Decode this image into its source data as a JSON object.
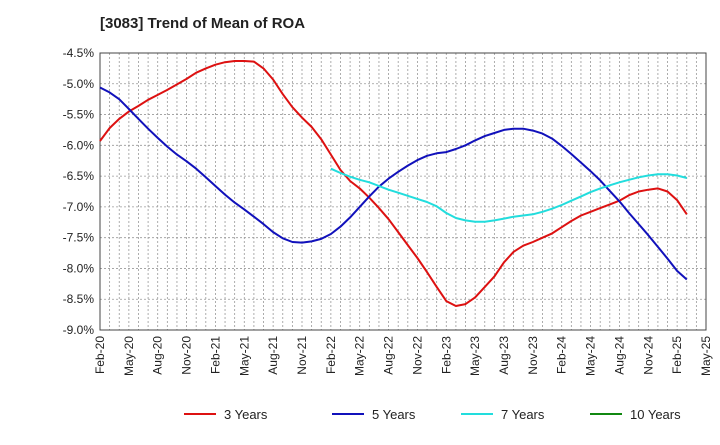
{
  "title": "[3083]  Trend of Mean of ROA",
  "chart_data": {
    "type": "line",
    "title": "[3083]  Trend of Mean of ROA",
    "xlabel": "",
    "ylabel": "",
    "ylim": [
      -9.0,
      -4.5
    ],
    "y_ticks": [
      -4.5,
      -5.0,
      -5.5,
      -6.0,
      -6.5,
      -7.0,
      -7.5,
      -8.0,
      -8.5,
      -9.0
    ],
    "y_tick_labels": [
      "-4.5%",
      "-5.0%",
      "-5.5%",
      "-6.0%",
      "-6.5%",
      "-7.0%",
      "-7.5%",
      "-8.0%",
      "-8.5%",
      "-9.0%"
    ],
    "x_tick_labels": [
      "Feb-20",
      "May-20",
      "Aug-20",
      "Nov-20",
      "Feb-21",
      "May-21",
      "Aug-21",
      "Nov-21",
      "Feb-22",
      "May-22",
      "Aug-22",
      "Nov-22",
      "Feb-23",
      "May-23",
      "Aug-23",
      "Nov-23",
      "Feb-24",
      "May-24",
      "Aug-24",
      "Nov-24",
      "Feb-25",
      "May-25"
    ],
    "grid": true,
    "legend_position": "bottom",
    "series": [
      {
        "name": "3 Years",
        "color": "#dd1111",
        "points": [
          [
            "Feb-20",
            -5.93
          ],
          [
            "Mar-20",
            -5.72
          ],
          [
            "Apr-20",
            -5.57
          ],
          [
            "May-20",
            -5.45
          ],
          [
            "Jun-20",
            -5.36
          ],
          [
            "Jul-20",
            -5.26
          ],
          [
            "Aug-20",
            -5.18
          ],
          [
            "Sep-20",
            -5.1
          ],
          [
            "Oct-20",
            -5.01
          ],
          [
            "Nov-20",
            -4.92
          ],
          [
            "Dec-20",
            -4.82
          ],
          [
            "Jan-21",
            -4.75
          ],
          [
            "Feb-21",
            -4.69
          ],
          [
            "Mar-21",
            -4.65
          ],
          [
            "Apr-21",
            -4.63
          ],
          [
            "May-21",
            -4.63
          ],
          [
            "Jun-21",
            -4.64
          ],
          [
            "Jul-21",
            -4.75
          ],
          [
            "Aug-21",
            -4.93
          ],
          [
            "Sep-21",
            -5.17
          ],
          [
            "Oct-21",
            -5.38
          ],
          [
            "Nov-21",
            -5.55
          ],
          [
            "Dec-21",
            -5.7
          ],
          [
            "Jan-22",
            -5.9
          ],
          [
            "Feb-22",
            -6.15
          ],
          [
            "Mar-22",
            -6.4
          ],
          [
            "Apr-22",
            -6.58
          ],
          [
            "May-22",
            -6.7
          ],
          [
            "Jun-22",
            -6.85
          ],
          [
            "Jul-22",
            -7.02
          ],
          [
            "Aug-22",
            -7.2
          ],
          [
            "Sep-22",
            -7.41
          ],
          [
            "Oct-22",
            -7.62
          ],
          [
            "Nov-22",
            -7.83
          ],
          [
            "Dec-22",
            -8.06
          ],
          [
            "Jan-23",
            -8.3
          ],
          [
            "Feb-23",
            -8.53
          ],
          [
            "Mar-23",
            -8.61
          ],
          [
            "Apr-23",
            -8.58
          ],
          [
            "May-23",
            -8.47
          ],
          [
            "Jun-23",
            -8.3
          ],
          [
            "Jul-23",
            -8.13
          ],
          [
            "Aug-23",
            -7.9
          ],
          [
            "Sep-23",
            -7.73
          ],
          [
            "Oct-23",
            -7.63
          ],
          [
            "Nov-23",
            -7.57
          ],
          [
            "Dec-23",
            -7.5
          ],
          [
            "Jan-24",
            -7.43
          ],
          [
            "Feb-24",
            -7.33
          ],
          [
            "Mar-24",
            -7.23
          ],
          [
            "Apr-24",
            -7.14
          ],
          [
            "May-24",
            -7.08
          ],
          [
            "Jun-24",
            -7.02
          ],
          [
            "Jul-24",
            -6.96
          ],
          [
            "Aug-24",
            -6.9
          ],
          [
            "Sep-24",
            -6.81
          ],
          [
            "Oct-24",
            -6.75
          ],
          [
            "Nov-24",
            -6.72
          ],
          [
            "Dec-24",
            -6.7
          ],
          [
            "Jan-25",
            -6.75
          ],
          [
            "Feb-25",
            -6.89
          ],
          [
            "Mar-25",
            -7.12
          ]
        ]
      },
      {
        "name": "5 Years",
        "color": "#1111bb",
        "points": [
          [
            "Feb-20",
            -5.06
          ],
          [
            "Mar-20",
            -5.14
          ],
          [
            "Apr-20",
            -5.25
          ],
          [
            "May-20",
            -5.41
          ],
          [
            "Jun-20",
            -5.57
          ],
          [
            "Jul-20",
            -5.73
          ],
          [
            "Aug-20",
            -5.88
          ],
          [
            "Sep-20",
            -6.02
          ],
          [
            "Oct-20",
            -6.15
          ],
          [
            "Nov-20",
            -6.26
          ],
          [
            "Dec-20",
            -6.38
          ],
          [
            "Jan-21",
            -6.52
          ],
          [
            "Feb-21",
            -6.66
          ],
          [
            "Mar-21",
            -6.8
          ],
          [
            "Apr-21",
            -6.93
          ],
          [
            "May-21",
            -7.04
          ],
          [
            "Jun-21",
            -7.16
          ],
          [
            "Jul-21",
            -7.28
          ],
          [
            "Aug-21",
            -7.41
          ],
          [
            "Sep-21",
            -7.51
          ],
          [
            "Oct-21",
            -7.57
          ],
          [
            "Nov-21",
            -7.58
          ],
          [
            "Dec-21",
            -7.56
          ],
          [
            "Jan-22",
            -7.52
          ],
          [
            "Feb-22",
            -7.44
          ],
          [
            "Mar-22",
            -7.32
          ],
          [
            "Apr-22",
            -7.17
          ],
          [
            "May-22",
            -7.0
          ],
          [
            "Jun-22",
            -6.83
          ],
          [
            "Jul-22",
            -6.67
          ],
          [
            "Aug-22",
            -6.54
          ],
          [
            "Sep-22",
            -6.43
          ],
          [
            "Oct-22",
            -6.33
          ],
          [
            "Nov-22",
            -6.24
          ],
          [
            "Dec-22",
            -6.17
          ],
          [
            "Jan-23",
            -6.13
          ],
          [
            "Feb-23",
            -6.11
          ],
          [
            "Mar-23",
            -6.06
          ],
          [
            "Apr-23",
            -6.0
          ],
          [
            "May-23",
            -5.92
          ],
          [
            "Jun-23",
            -5.85
          ],
          [
            "Jul-23",
            -5.8
          ],
          [
            "Aug-23",
            -5.75
          ],
          [
            "Sep-23",
            -5.73
          ],
          [
            "Oct-23",
            -5.73
          ],
          [
            "Nov-23",
            -5.76
          ],
          [
            "Dec-23",
            -5.81
          ],
          [
            "Jan-24",
            -5.89
          ],
          [
            "Feb-24",
            -6.01
          ],
          [
            "Mar-24",
            -6.14
          ],
          [
            "Apr-24",
            -6.28
          ],
          [
            "May-24",
            -6.42
          ],
          [
            "Jun-24",
            -6.57
          ],
          [
            "Jul-24",
            -6.74
          ],
          [
            "Aug-24",
            -6.91
          ],
          [
            "Sep-24",
            -7.1
          ],
          [
            "Oct-24",
            -7.28
          ],
          [
            "Nov-24",
            -7.46
          ],
          [
            "Dec-24",
            -7.65
          ],
          [
            "Jan-25",
            -7.84
          ],
          [
            "Feb-25",
            -8.04
          ],
          [
            "Mar-25",
            -8.18
          ]
        ]
      },
      {
        "name": "7 Years",
        "color": "#22dddd",
        "points": [
          [
            "Feb-22",
            -6.38
          ],
          [
            "Mar-22",
            -6.45
          ],
          [
            "Apr-22",
            -6.51
          ],
          [
            "May-22",
            -6.56
          ],
          [
            "Jun-22",
            -6.6
          ],
          [
            "Jul-22",
            -6.66
          ],
          [
            "Aug-22",
            -6.72
          ],
          [
            "Sep-22",
            -6.77
          ],
          [
            "Oct-22",
            -6.82
          ],
          [
            "Nov-22",
            -6.87
          ],
          [
            "Dec-22",
            -6.92
          ],
          [
            "Jan-23",
            -6.99
          ],
          [
            "Feb-23",
            -7.1
          ],
          [
            "Mar-23",
            -7.18
          ],
          [
            "Apr-23",
            -7.22
          ],
          [
            "May-23",
            -7.24
          ],
          [
            "Jun-23",
            -7.24
          ],
          [
            "Jul-23",
            -7.22
          ],
          [
            "Aug-23",
            -7.19
          ],
          [
            "Sep-23",
            -7.16
          ],
          [
            "Oct-23",
            -7.14
          ],
          [
            "Nov-23",
            -7.12
          ],
          [
            "Dec-23",
            -7.08
          ],
          [
            "Jan-24",
            -7.03
          ],
          [
            "Feb-24",
            -6.97
          ],
          [
            "Mar-24",
            -6.9
          ],
          [
            "Apr-24",
            -6.83
          ],
          [
            "May-24",
            -6.76
          ],
          [
            "Jun-24",
            -6.7
          ],
          [
            "Jul-24",
            -6.65
          ],
          [
            "Aug-24",
            -6.6
          ],
          [
            "Sep-24",
            -6.56
          ],
          [
            "Oct-24",
            -6.52
          ],
          [
            "Nov-24",
            -6.49
          ],
          [
            "Dec-24",
            -6.47
          ],
          [
            "Jan-25",
            -6.47
          ],
          [
            "Feb-25",
            -6.49
          ],
          [
            "Mar-25",
            -6.53
          ]
        ]
      },
      {
        "name": "10 Years",
        "color": "#118811",
        "points": []
      }
    ]
  }
}
